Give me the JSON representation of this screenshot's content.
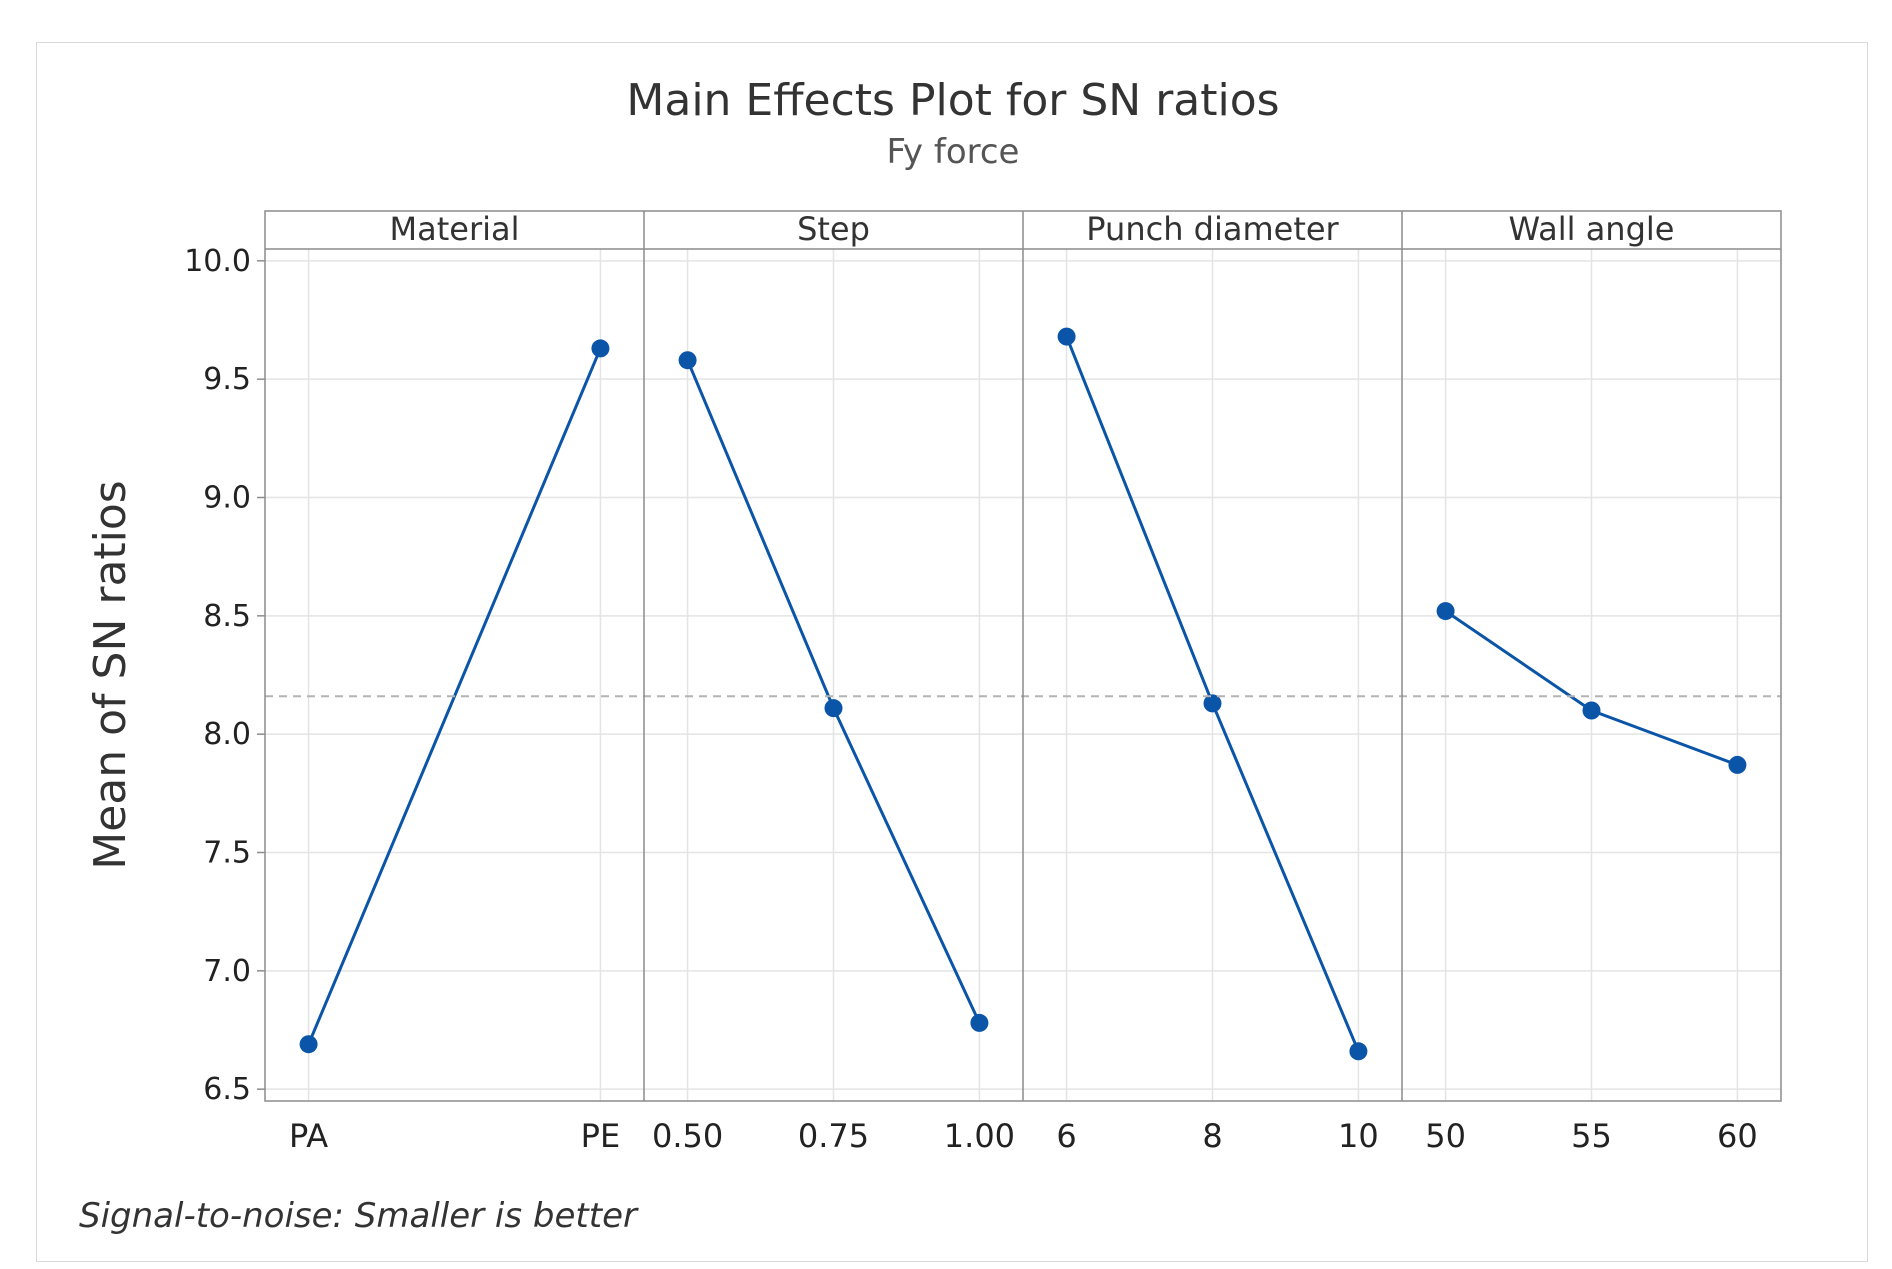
{
  "chart_data": {
    "type": "line",
    "title": "Main Effects Plot for SN ratios",
    "subtitle": "Fy force",
    "ylabel": "Mean of SN ratios",
    "ylim": [
      6.45,
      10.05
    ],
    "yticks": [
      6.5,
      7.0,
      7.5,
      8.0,
      8.5,
      9.0,
      9.5,
      10.0
    ],
    "ytick_labels": [
      "6.5",
      "7.0",
      "7.5",
      "8.0",
      "8.5",
      "9.0",
      "9.5",
      "10.0"
    ],
    "overall_mean": 8.16,
    "grid": true,
    "line_color": "#0b55a8",
    "panels": [
      {
        "name": "Material",
        "levels": [
          "PA",
          "PE"
        ],
        "values": [
          6.69,
          9.63
        ]
      },
      {
        "name": "Step",
        "levels": [
          "0.50",
          "0.75",
          "1.00"
        ],
        "values": [
          9.58,
          8.11,
          6.78
        ]
      },
      {
        "name": "Punch diameter",
        "levels": [
          "6",
          "8",
          "10"
        ],
        "values": [
          9.68,
          8.13,
          6.66
        ]
      },
      {
        "name": "Wall angle",
        "levels": [
          "50",
          "55",
          "60"
        ],
        "values": [
          8.52,
          8.1,
          7.87
        ]
      }
    ],
    "footnote": "Signal-to-noise: Smaller is better"
  }
}
